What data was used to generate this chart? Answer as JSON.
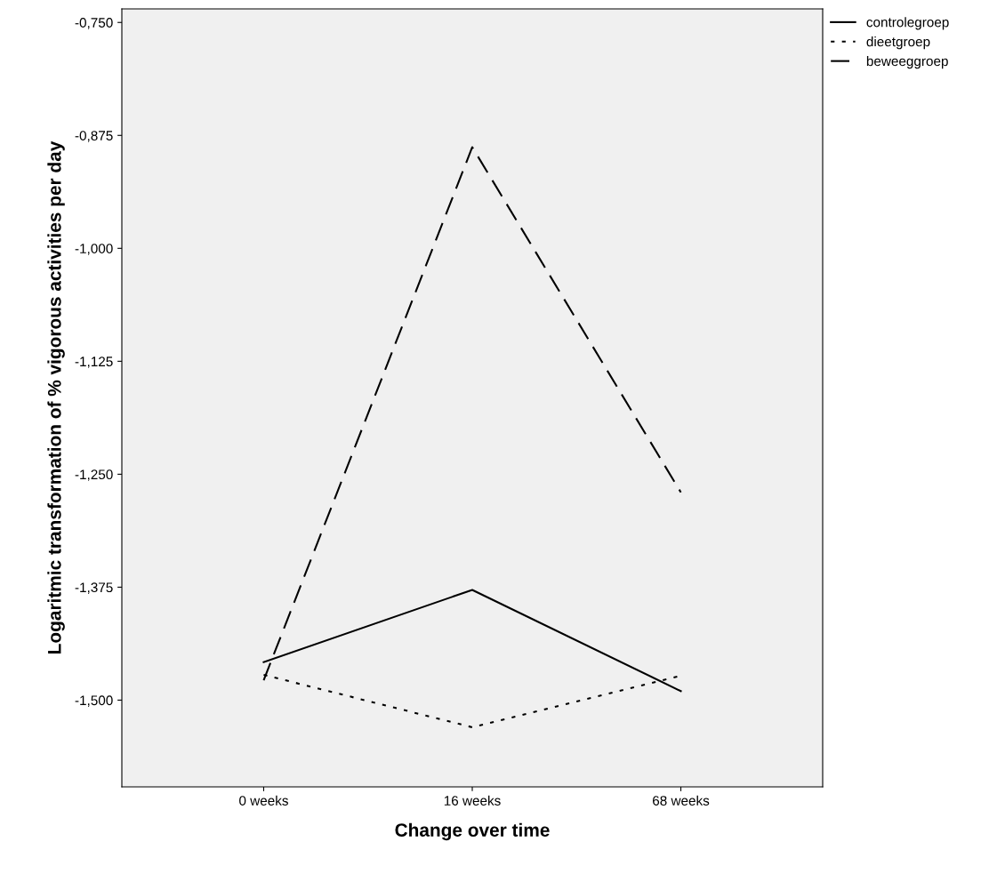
{
  "chart_data": {
    "type": "line",
    "xlabel": "Change over time",
    "ylabel": "Logaritmic transformation of % vigorous activities per day",
    "categories": [
      "0 weeks",
      "16 weeks",
      "68 weeks"
    ],
    "series": [
      {
        "name": "controlegroep",
        "color": "#000000",
        "line_style": "solid",
        "values": [
          -1.458,
          -1.378,
          -1.49
        ]
      },
      {
        "name": "dieetgroep",
        "color": "#000000",
        "line_style": "dotted",
        "values": [
          -1.472,
          -1.53,
          -1.473
        ]
      },
      {
        "name": "beweeggroep",
        "color": "#000000",
        "line_style": "dashed",
        "values": [
          -1.478,
          -0.888,
          -1.27
        ]
      }
    ],
    "ylim": [
      -1.596,
      -0.735
    ],
    "yticks": [
      {
        "value": -1.5,
        "label": "-1,500"
      },
      {
        "value": -1.375,
        "label": "-1,375"
      },
      {
        "value": -1.25,
        "label": "-1,250"
      },
      {
        "value": -1.125,
        "label": "-1,125"
      },
      {
        "value": -1.0,
        "label": "-1,000"
      },
      {
        "value": -0.875,
        "label": "-0,875"
      },
      {
        "value": -0.75,
        "label": "-0,750"
      }
    ],
    "grid": false,
    "legend": "top right",
    "marker": "none"
  }
}
